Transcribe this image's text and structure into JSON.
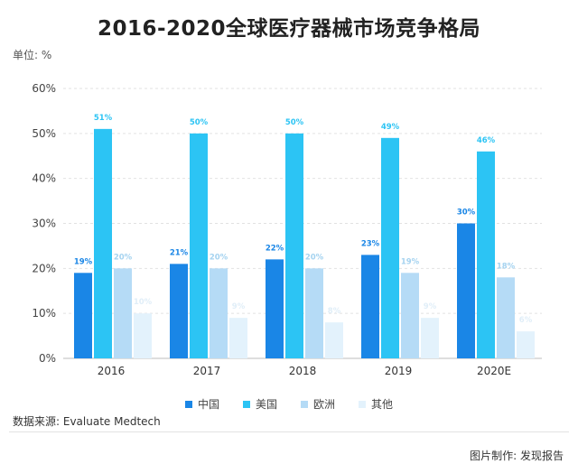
{
  "page": {
    "title": "2016-2020全球医疗器械市场竞争格局",
    "unit_label": "单位: %",
    "source": "数据来源: Evaluate Medtech",
    "credit": "图片制作: 发现报告"
  },
  "chart_data": {
    "type": "bar",
    "title": "2016-2020全球医疗器械市场竞争格局",
    "xlabel": "",
    "ylabel": "单位: %",
    "categories": [
      "2016",
      "2017",
      "2018",
      "2019",
      "2020E"
    ],
    "ylim": [
      0,
      60
    ],
    "yticks": [
      "0%",
      "10%",
      "20%",
      "30%",
      "40%",
      "50%",
      "60%"
    ],
    "grid": true,
    "legend_position": "bottom",
    "series": [
      {
        "name": "中国",
        "color": "#1a86e6",
        "label_color": "#1a86e6",
        "values": [
          19,
          21,
          22,
          23,
          30
        ],
        "labels": [
          "19%",
          "21%",
          "22%",
          "23%",
          "30%"
        ]
      },
      {
        "name": "美国",
        "color": "#2cc4f4",
        "label_color": "#2cc4f4",
        "values": [
          51,
          50,
          50,
          49,
          46
        ],
        "labels": [
          "51%",
          "50%",
          "50%",
          "49%",
          "46%"
        ]
      },
      {
        "name": "欧洲",
        "color": "#b5dbf6",
        "label_color": "#a5d3f0",
        "values": [
          20,
          20,
          20,
          19,
          18
        ],
        "labels": [
          "20%",
          "20%",
          "20%",
          "19%",
          "18%"
        ]
      },
      {
        "name": "其他",
        "color": "#e3f2fc",
        "label_color": "#e0eef8",
        "values": [
          10,
          9,
          8,
          9,
          6
        ],
        "labels": [
          "10%",
          "9%",
          "8%",
          "9%",
          "6%"
        ]
      }
    ]
  }
}
